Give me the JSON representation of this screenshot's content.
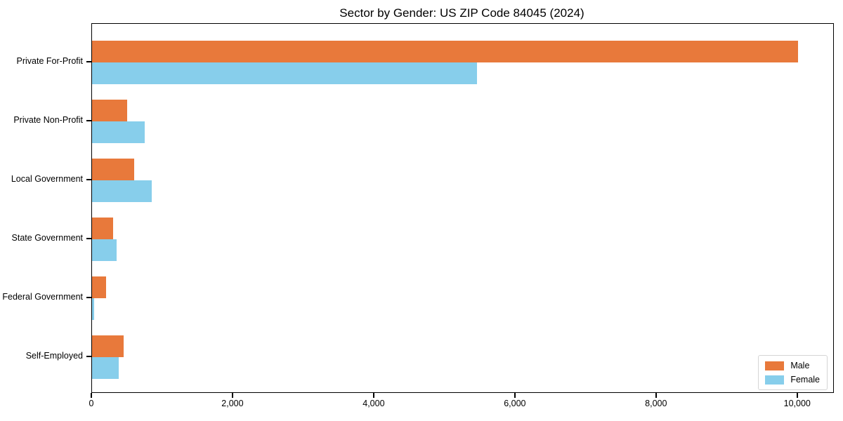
{
  "title": "Sector by Gender: US ZIP Code 84045 (2024)",
  "colors": {
    "male": "#e8793b",
    "female": "#87ceeb",
    "spine": "#000000",
    "legend_border": "#d5d5d5",
    "background": "#ffffff"
  },
  "legend": {
    "position": "lower right",
    "items": [
      {
        "label": "Male",
        "color": "#e8793b"
      },
      {
        "label": "Female",
        "color": "#87ceeb"
      }
    ]
  },
  "chart_data": {
    "type": "bar",
    "orientation": "horizontal",
    "title": "Sector by Gender: US ZIP Code 84045 (2024)",
    "categories": [
      "Private For-Profit",
      "Private Non-Profit",
      "Local Government",
      "State Government",
      "Federal Government",
      "Self-Employed"
    ],
    "series": [
      {
        "name": "Male",
        "color": "#e8793b",
        "values": [
          10000,
          500,
          600,
          300,
          200,
          450
        ]
      },
      {
        "name": "Female",
        "color": "#87ceeb",
        "values": [
          5450,
          750,
          850,
          350,
          25,
          375
        ]
      }
    ],
    "xlabel": "",
    "ylabel": "",
    "xlim": [
      0,
      10500
    ],
    "xticks": [
      0,
      2000,
      4000,
      6000,
      8000,
      10000
    ],
    "xtick_labels": [
      "0",
      "2,000",
      "4,000",
      "6,000",
      "8,000",
      "10,000"
    ],
    "grid": false,
    "legend_position": "lower right"
  }
}
